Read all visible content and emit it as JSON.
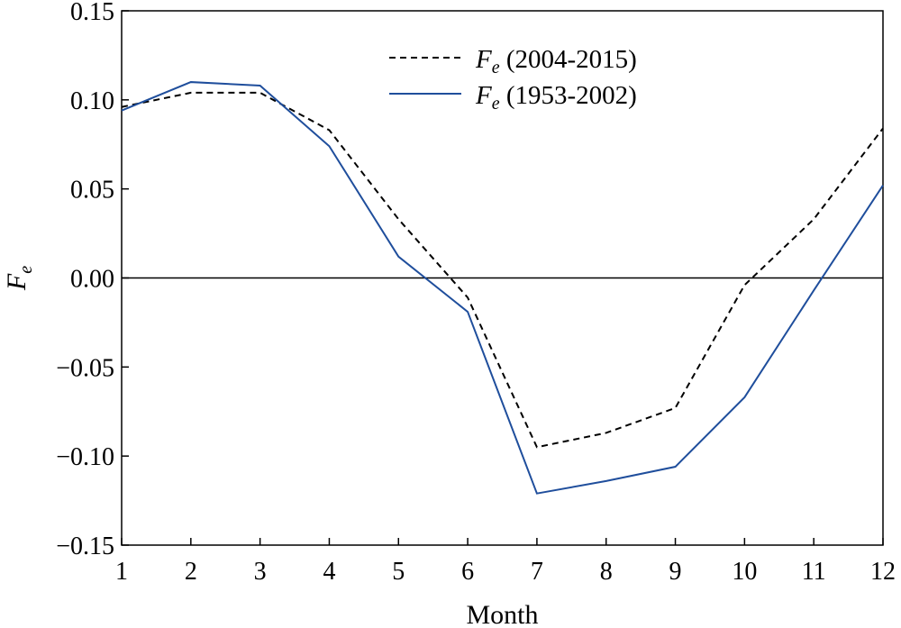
{
  "chart_data": {
    "type": "line",
    "title": "",
    "xlabel": "Month",
    "ylabel": "F_e",
    "ylabel_main": "F",
    "ylabel_sub": "e",
    "xlim": [
      1,
      12
    ],
    "ylim": [
      -0.15,
      0.15
    ],
    "x_ticks": [
      1,
      2,
      3,
      4,
      5,
      6,
      7,
      8,
      9,
      10,
      11,
      12
    ],
    "x_tick_labels": [
      "1",
      "2",
      "3",
      "4",
      "5",
      "6",
      "7",
      "8",
      "9",
      "10",
      "11",
      "12"
    ],
    "y_ticks": [
      0.15,
      0.1,
      0.05,
      0.0,
      -0.05,
      -0.1,
      -0.15
    ],
    "y_tick_labels": [
      "0.15",
      "0.10",
      "0.05",
      "0.00",
      "−0.05",
      "−0.10",
      "−0.15"
    ],
    "grid": false,
    "reference_line_y": 0,
    "legend_position": "top-center",
    "x": [
      1,
      2,
      3,
      4,
      5,
      6,
      7,
      8,
      9,
      10,
      11,
      12
    ],
    "series": [
      {
        "name": "F_e (2004-2015)",
        "legend_main": "F",
        "legend_sub": "e",
        "legend_rest": " (2004-2015)",
        "style": "dashed",
        "color": "#000000",
        "values": [
          0.096,
          0.104,
          0.104,
          0.083,
          0.033,
          -0.011,
          -0.095,
          -0.087,
          -0.073,
          -0.004,
          0.033,
          0.084
        ]
      },
      {
        "name": "F_e (1953-2002)",
        "legend_main": "F",
        "legend_sub": "e",
        "legend_rest": " (1953-2002)",
        "style": "solid",
        "color": "#1f4e9c",
        "values": [
          0.094,
          0.11,
          0.108,
          0.074,
          0.012,
          -0.019,
          -0.121,
          -0.114,
          -0.106,
          -0.067,
          -0.007,
          0.052
        ]
      }
    ]
  }
}
